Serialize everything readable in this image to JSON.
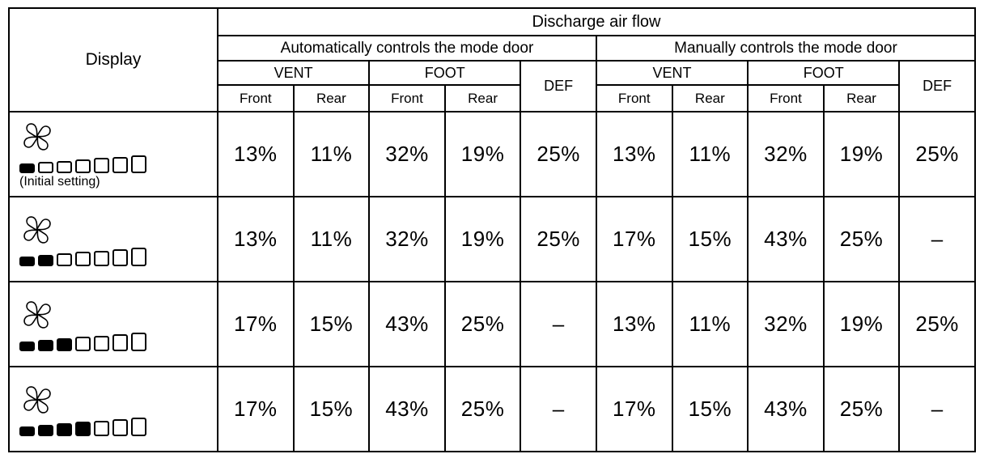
{
  "page": {
    "background": "#ffffff",
    "border_color": "#000000",
    "text_color": "#000000"
  },
  "table": {
    "display_header": "Display",
    "top_header": "Discharge air flow",
    "group_headers": [
      "Automatically controls the mode door",
      "Manually controls the mode door"
    ],
    "vent_label": "VENT",
    "foot_label": "FOOT",
    "def_label": "DEF",
    "front_label": "Front",
    "rear_label": "Rear",
    "bar_total": 7,
    "rows": [
      {
        "display": {
          "icon": "fan-icon",
          "filled_bars": 1,
          "note": "(Initial setting)"
        },
        "values": [
          "13%",
          "11%",
          "32%",
          "19%",
          "25%",
          "13%",
          "11%",
          "32%",
          "19%",
          "25%"
        ]
      },
      {
        "display": {
          "icon": "fan-icon",
          "filled_bars": 2
        },
        "values": [
          "13%",
          "11%",
          "32%",
          "19%",
          "25%",
          "17%",
          "15%",
          "43%",
          "25%",
          "–"
        ]
      },
      {
        "display": {
          "icon": "fan-icon",
          "filled_bars": 3
        },
        "values": [
          "17%",
          "15%",
          "43%",
          "25%",
          "–",
          "13%",
          "11%",
          "32%",
          "19%",
          "25%"
        ]
      },
      {
        "display": {
          "icon": "fan-icon",
          "filled_bars": 4
        },
        "values": [
          "17%",
          "15%",
          "43%",
          "25%",
          "–",
          "17%",
          "15%",
          "43%",
          "25%",
          "–"
        ]
      }
    ]
  }
}
